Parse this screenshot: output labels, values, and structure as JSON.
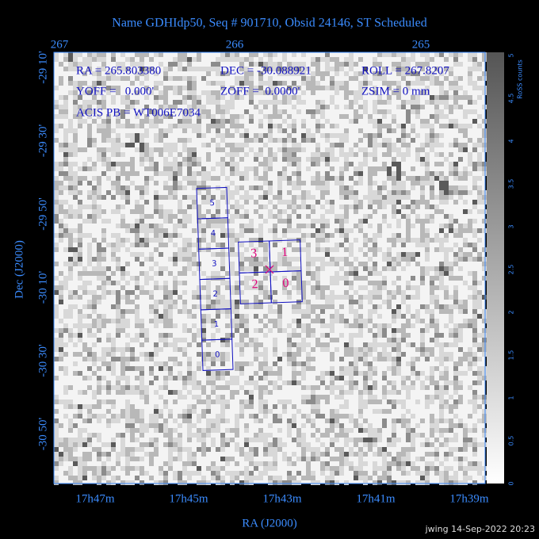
{
  "header": {
    "title": "Name GDHIdp50, Seq # 901710, Obsid 24146, ST Scheduled"
  },
  "axes": {
    "top_ticks": [
      "267",
      "266",
      "265"
    ],
    "left_ticks": [
      "-29 10'",
      "-29 30'",
      "-29 50'",
      "-30 10'",
      "-30 30'",
      "-30 50'"
    ],
    "bottom_ticks": [
      "17h47m",
      "17h45m",
      "17h43m",
      "17h41m",
      "17h39m"
    ],
    "x_label": "RA (J2000)",
    "y_label": "Dec (J2000)"
  },
  "colorbar": {
    "label": "RoSS counts",
    "ticks": [
      "0",
      "0.5",
      "1",
      "1.5",
      "2",
      "2.5",
      "3",
      "3.5",
      "4",
      "4.5",
      "5"
    ]
  },
  "info": {
    "ra": "RA = 265.803380",
    "dec": "DEC = -30.088921",
    "roll": "ROLL = 267.8207",
    "yoff": "YOFF =   0.000'",
    "zoff": "ZOFF =  0.0000'",
    "zsim": "ZSIM = 0 mm",
    "acis": "ACIS PB = WT006E7034"
  },
  "chips": {
    "acis_s": [
      "5",
      "4",
      "3",
      "2",
      "1",
      "0"
    ],
    "acis_i": [
      "3",
      "1",
      "2",
      "0"
    ]
  },
  "footer": "jwing 14-Sep-2022 20:23"
}
